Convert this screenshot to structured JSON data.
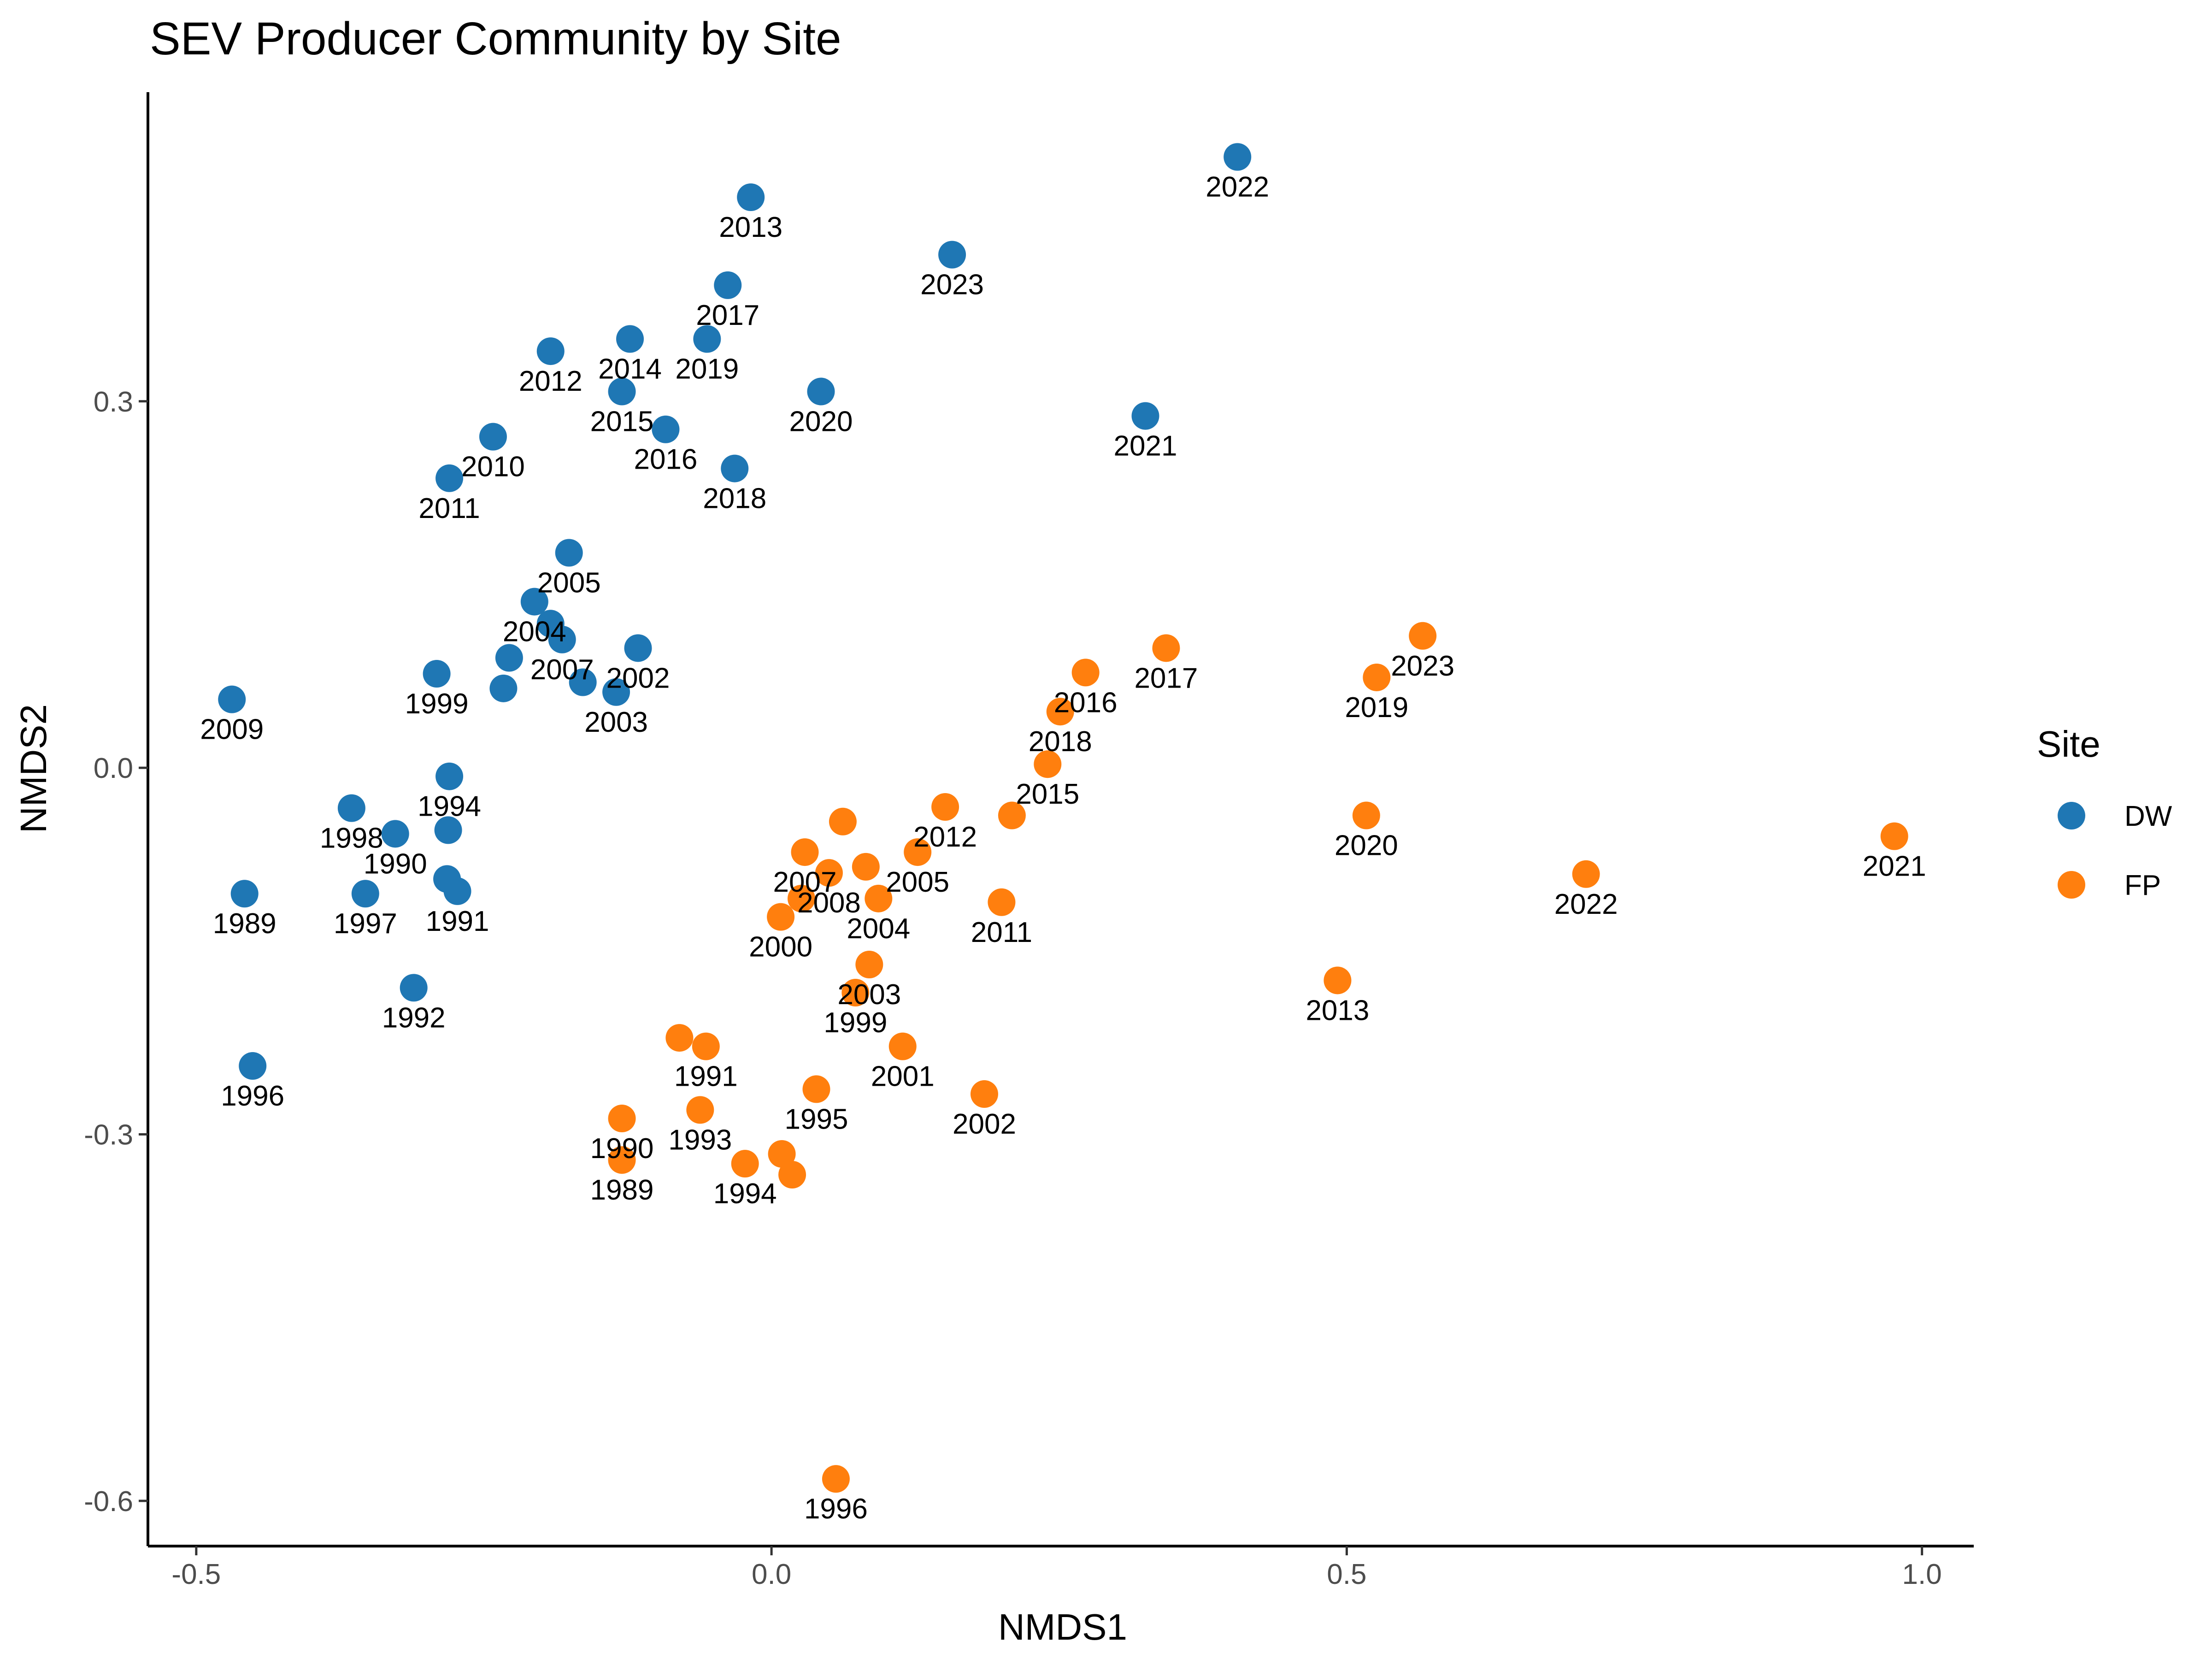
{
  "chart_data": {
    "type": "scatter",
    "title": "SEV Producer Community by Site",
    "xlabel": "NMDS1",
    "ylabel": "NMDS2",
    "xlim": [
      -0.542,
      1.045
    ],
    "ylim": [
      -0.637,
      0.553
    ],
    "xticks": [
      {
        "value": -0.5,
        "label": "-0.5"
      },
      {
        "value": 0.0,
        "label": "0.0"
      },
      {
        "value": 0.5,
        "label": "0.5"
      },
      {
        "value": 1.0,
        "label": "1.0"
      }
    ],
    "yticks": [
      {
        "value": -0.6,
        "label": "-0.6"
      },
      {
        "value": -0.3,
        "label": "-0.3"
      },
      {
        "value": 0.0,
        "label": "0.0"
      },
      {
        "value": 0.3,
        "label": "0.3"
      }
    ],
    "grid": false,
    "legend": {
      "title": "Site",
      "position": "right"
    },
    "series": [
      {
        "name": "DW",
        "color": "#1f77b4",
        "points": [
          {
            "x": 0.405,
            "y": 0.5,
            "label": "2022"
          },
          {
            "x": -0.018,
            "y": 0.467,
            "label": "2013"
          },
          {
            "x": 0.157,
            "y": 0.42,
            "label": "2023"
          },
          {
            "x": -0.038,
            "y": 0.395,
            "label": "2017"
          },
          {
            "x": -0.192,
            "y": 0.341,
            "label": "2012"
          },
          {
            "x": -0.123,
            "y": 0.351,
            "label": "2014"
          },
          {
            "x": -0.056,
            "y": 0.351,
            "label": "2019"
          },
          {
            "x": -0.13,
            "y": 0.308,
            "label": "2015"
          },
          {
            "x": 0.043,
            "y": 0.308,
            "label": "2020"
          },
          {
            "x": 0.325,
            "y": 0.288,
            "label": "2021"
          },
          {
            "x": -0.242,
            "y": 0.271,
            "label": "2010"
          },
          {
            "x": -0.092,
            "y": 0.277,
            "label": "2016"
          },
          {
            "x": -0.28,
            "y": 0.237,
            "label": "2011"
          },
          {
            "x": -0.032,
            "y": 0.245,
            "label": "2018"
          },
          {
            "x": -0.176,
            "y": 0.176,
            "label": "2005"
          },
          {
            "x": -0.206,
            "y": 0.136,
            "label": "2004"
          },
          {
            "x": -0.192,
            "y": 0.118,
            "label": ""
          },
          {
            "x": -0.182,
            "y": 0.105,
            "label": "2007"
          },
          {
            "x": -0.116,
            "y": 0.098,
            "label": "2002"
          },
          {
            "x": -0.228,
            "y": 0.09,
            "label": ""
          },
          {
            "x": -0.291,
            "y": 0.077,
            "label": "1999"
          },
          {
            "x": -0.233,
            "y": 0.065,
            "label": ""
          },
          {
            "x": -0.164,
            "y": 0.07,
            "label": ""
          },
          {
            "x": -0.135,
            "y": 0.062,
            "label": "2003"
          },
          {
            "x": -0.469,
            "y": 0.056,
            "label": "2009"
          },
          {
            "x": -0.28,
            "y": -0.007,
            "label": "1994"
          },
          {
            "x": -0.365,
            "y": -0.033,
            "label": "1998"
          },
          {
            "x": -0.327,
            "y": -0.054,
            "label": "1990"
          },
          {
            "x": -0.281,
            "y": -0.051,
            "label": ""
          },
          {
            "x": -0.282,
            "y": -0.091,
            "label": ""
          },
          {
            "x": -0.273,
            "y": -0.101,
            "label": "1991"
          },
          {
            "x": -0.458,
            "y": -0.103,
            "label": "1989"
          },
          {
            "x": -0.353,
            "y": -0.103,
            "label": "1997"
          },
          {
            "x": -0.311,
            "y": -0.18,
            "label": "1992"
          },
          {
            "x": -0.451,
            "y": -0.244,
            "label": "1996"
          }
        ]
      },
      {
        "name": "FP",
        "color": "#ff7f0e",
        "points": [
          {
            "x": 0.566,
            "y": 0.108,
            "label": "2023"
          },
          {
            "x": 0.343,
            "y": 0.098,
            "label": "2017"
          },
          {
            "x": 0.273,
            "y": 0.078,
            "label": "2016"
          },
          {
            "x": 0.526,
            "y": 0.074,
            "label": "2019"
          },
          {
            "x": 0.251,
            "y": 0.046,
            "label": "2018"
          },
          {
            "x": 0.24,
            "y": 0.003,
            "label": "2015"
          },
          {
            "x": 0.517,
            "y": -0.039,
            "label": "2020"
          },
          {
            "x": 0.209,
            "y": -0.039,
            "label": ""
          },
          {
            "x": 0.151,
            "y": -0.032,
            "label": "2012"
          },
          {
            "x": 0.062,
            "y": -0.044,
            "label": ""
          },
          {
            "x": 0.976,
            "y": -0.056,
            "label": "2021"
          },
          {
            "x": 0.029,
            "y": -0.069,
            "label": "2007"
          },
          {
            "x": 0.127,
            "y": -0.069,
            "label": "2005"
          },
          {
            "x": 0.082,
            "y": -0.081,
            "label": ""
          },
          {
            "x": 0.05,
            "y": -0.086,
            "label": "2008"
          },
          {
            "x": 0.708,
            "y": -0.087,
            "label": "2022"
          },
          {
            "x": 0.093,
            "y": -0.107,
            "label": "2004"
          },
          {
            "x": 0.2,
            "y": -0.11,
            "label": "2011"
          },
          {
            "x": 0.026,
            "y": -0.107,
            "label": ""
          },
          {
            "x": 0.008,
            "y": -0.122,
            "label": "2000"
          },
          {
            "x": 0.085,
            "y": -0.161,
            "label": "2003"
          },
          {
            "x": 0.492,
            "y": -0.174,
            "label": "2013"
          },
          {
            "x": 0.073,
            "y": -0.184,
            "label": "1999"
          },
          {
            "x": -0.08,
            "y": -0.221,
            "label": ""
          },
          {
            "x": -0.057,
            "y": -0.228,
            "label": "1991"
          },
          {
            "x": 0.114,
            "y": -0.228,
            "label": "2001"
          },
          {
            "x": 0.185,
            "y": -0.267,
            "label": "2002"
          },
          {
            "x": 0.039,
            "y": -0.263,
            "label": "1995"
          },
          {
            "x": -0.062,
            "y": -0.28,
            "label": "1993"
          },
          {
            "x": -0.13,
            "y": -0.287,
            "label": "1990"
          },
          {
            "x": 0.009,
            "y": -0.316,
            "label": ""
          },
          {
            "x": -0.13,
            "y": -0.321,
            "label": "1989"
          },
          {
            "x": -0.023,
            "y": -0.324,
            "label": "1994"
          },
          {
            "x": 0.018,
            "y": -0.333,
            "label": ""
          },
          {
            "x": 0.056,
            "y": -0.582,
            "label": "1996"
          }
        ]
      }
    ]
  }
}
